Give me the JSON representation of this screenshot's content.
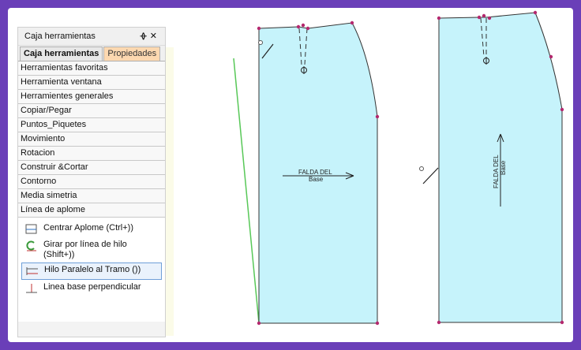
{
  "panel": {
    "title": "Caja herramientas",
    "pin_glyph": "ᚖ",
    "close_glyph": "✕",
    "tabs": [
      {
        "label": "Caja herramientas",
        "active": true
      },
      {
        "label": "Propiedades",
        "active": false
      }
    ],
    "categories": [
      "Herramientas favoritas",
      "Herramienta ventana",
      "Herramientes generales",
      "Copiar/Pegar",
      "Puntos_Piquetes",
      "Movimiento",
      "Rotacion",
      "Construir &Cortar",
      "Contorno",
      "Media simetria",
      "Línea de aplome"
    ],
    "tools": [
      {
        "label": "Centrar Aplome (Ctrl+))",
        "icon": "center-grain-icon"
      },
      {
        "label": "Girar por línea de hilo (Shift+))",
        "icon": "rotate-grain-icon"
      },
      {
        "label": "Hilo Paralelo al Tramo ())",
        "icon": "parallel-grain-icon",
        "selected": true
      },
      {
        "label": "Linea base perpendicular",
        "icon": "perpendicular-base-icon"
      }
    ]
  },
  "pieces": [
    {
      "label_line1": "FALDA DEL",
      "label_line2": "Base",
      "orientation": "horizontal"
    },
    {
      "label_line1": "FALDA DEL",
      "label_line2": "Base",
      "orientation": "vertical"
    }
  ],
  "colors": {
    "piece_fill": "#c6f3fb",
    "piece_stroke": "#333333",
    "point": "#b4286e",
    "guide_line": "#58c858",
    "frame_border": "#6a3fb8"
  }
}
